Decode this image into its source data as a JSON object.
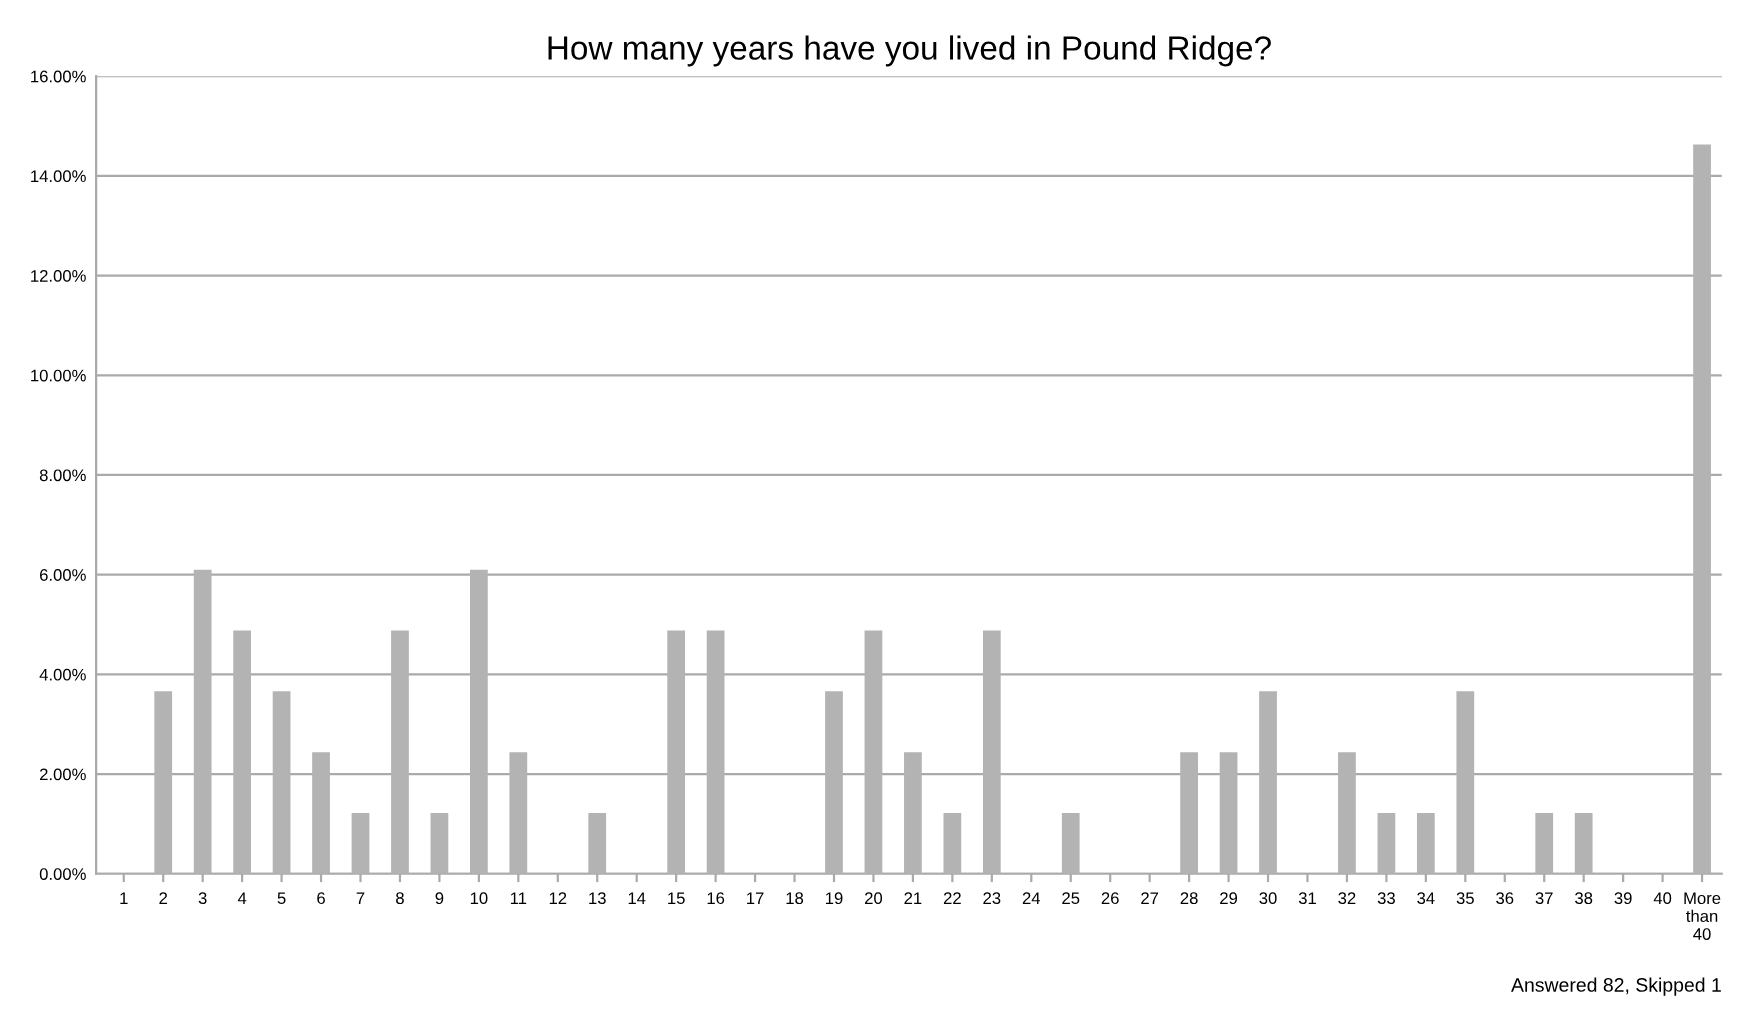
{
  "chart_data": {
    "type": "bar",
    "title": "How many years have you lived in Pound Ridge?",
    "categories": [
      "1",
      "2",
      "3",
      "4",
      "5",
      "6",
      "7",
      "8",
      "9",
      "10",
      "11",
      "12",
      "13",
      "14",
      "15",
      "16",
      "17",
      "18",
      "19",
      "20",
      "21",
      "22",
      "23",
      "24",
      "25",
      "26",
      "27",
      "28",
      "29",
      "30",
      "31",
      "32",
      "33",
      "34",
      "35",
      "36",
      "37",
      "38",
      "39",
      "40",
      "More than 40"
    ],
    "values": [
      0,
      3.66,
      6.1,
      4.88,
      3.66,
      2.44,
      1.22,
      4.88,
      1.22,
      6.1,
      2.44,
      0,
      1.22,
      0,
      4.88,
      4.88,
      0,
      0,
      3.66,
      4.88,
      2.44,
      1.22,
      4.88,
      0,
      1.22,
      0,
      0,
      2.44,
      2.44,
      3.66,
      0,
      2.44,
      1.22,
      1.22,
      3.66,
      0,
      1.22,
      1.22,
      0,
      0,
      14.63
    ],
    "color": "#b3b3b3",
    "ylim": [
      0,
      16
    ],
    "yticks": [
      {
        "value": 0,
        "label": "0.00%"
      },
      {
        "value": 2,
        "label": "2.00%"
      },
      {
        "value": 4,
        "label": "4.00%"
      },
      {
        "value": 6,
        "label": "6.00%"
      },
      {
        "value": 8,
        "label": "8.00%"
      },
      {
        "value": 10,
        "label": "10.00%"
      },
      {
        "value": 12,
        "label": "12.00%"
      },
      {
        "value": 14,
        "label": "14.00%"
      },
      {
        "value": 16,
        "label": "16.00%"
      }
    ],
    "grid": "y",
    "annotations": [
      "Answered 82, Skipped 1"
    ]
  }
}
